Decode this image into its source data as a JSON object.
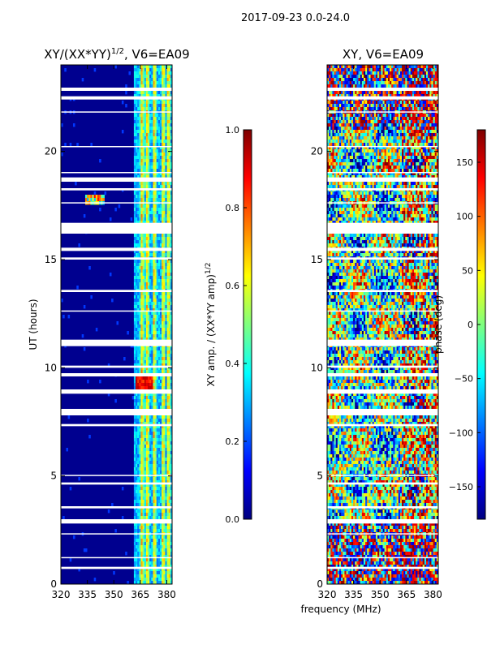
{
  "suptitle": "2017-09-23 0.0-24.0",
  "xlabel": "frequency (MHz)",
  "ylabel": "UT (hours)",
  "colors": {
    "heatmap_bg": "#00008f",
    "gap": "#ffffff"
  },
  "colormap": [
    "#00007f",
    "#0000ff",
    "#007fff",
    "#00ffff",
    "#7fff7f",
    "#ffff00",
    "#ff7f00",
    "#ff0000",
    "#7f0000"
  ],
  "chart_data": [
    {
      "type": "heatmap",
      "title_main": "XY/(XX*YY)",
      "title_sup": "1/2",
      "title_rest": ", V6=EA09",
      "xlabel": "frequency (MHz)",
      "ylabel": "UT (hours)",
      "xlim": [
        320,
        383
      ],
      "ylim": [
        0,
        24
      ],
      "xticks": [
        320,
        335,
        350,
        365,
        380
      ],
      "yticks": [
        0,
        5,
        10,
        15,
        20
      ],
      "colorbar": {
        "label": "XY amp. / (XX*YY amp)",
        "label_sup": "1/2",
        "range": [
          0.0,
          1.0
        ],
        "ticks": [
          "0.0",
          "0.2",
          "0.4",
          "0.6",
          "0.8",
          "1.0"
        ]
      },
      "active_band_mhz": [
        361,
        383
      ],
      "bright_channels_mhz": [
        366,
        369,
        373,
        378,
        381
      ],
      "rfi_event": {
        "ut": 17.8,
        "freq_mhz": [
          334,
          345
        ],
        "value": 0.9
      },
      "hot_spot": {
        "ut": 9.3,
        "freq_mhz": [
          362,
          372
        ],
        "value": 0.95
      }
    },
    {
      "type": "heatmap",
      "title_main": "XY, V6=EA09",
      "xlabel": "frequency (MHz)",
      "xlim": [
        320,
        383
      ],
      "ylim": [
        0,
        24
      ],
      "xticks": [
        320,
        335,
        350,
        365,
        380
      ],
      "yticks": [
        0,
        5,
        10,
        15,
        20
      ],
      "colorbar": {
        "label": "phase (deg)",
        "range": [
          -180,
          180
        ],
        "ticks": [
          "150",
          "100",
          "50",
          "0",
          "−50",
          "−100",
          "−150"
        ],
        "tick_values": [
          150,
          100,
          50,
          0,
          -50,
          -100,
          -150
        ]
      }
    }
  ],
  "gap_bands_ut": [
    [
      16.2,
      16.7
    ],
    [
      15.4,
      15.55
    ],
    [
      15.0,
      15.1
    ],
    [
      13.5,
      13.6
    ],
    [
      12.6,
      12.65
    ],
    [
      11.0,
      11.3
    ],
    [
      10.0,
      10.1
    ],
    [
      9.6,
      9.75
    ],
    [
      8.8,
      9.0
    ],
    [
      7.8,
      8.1
    ],
    [
      7.3,
      7.4
    ],
    [
      5.0,
      5.05
    ],
    [
      4.6,
      4.7
    ],
    [
      3.5,
      3.6
    ],
    [
      2.8,
      3.0
    ],
    [
      2.3,
      2.35
    ],
    [
      1.2,
      1.25
    ],
    [
      0.7,
      0.8
    ],
    [
      19.0,
      19.05
    ],
    [
      18.6,
      18.8
    ],
    [
      18.2,
      18.3
    ],
    [
      17.6,
      17.65
    ],
    [
      21.8,
      21.85
    ],
    [
      22.4,
      22.55
    ],
    [
      22.8,
      22.95
    ],
    [
      20.2,
      20.25
    ]
  ]
}
